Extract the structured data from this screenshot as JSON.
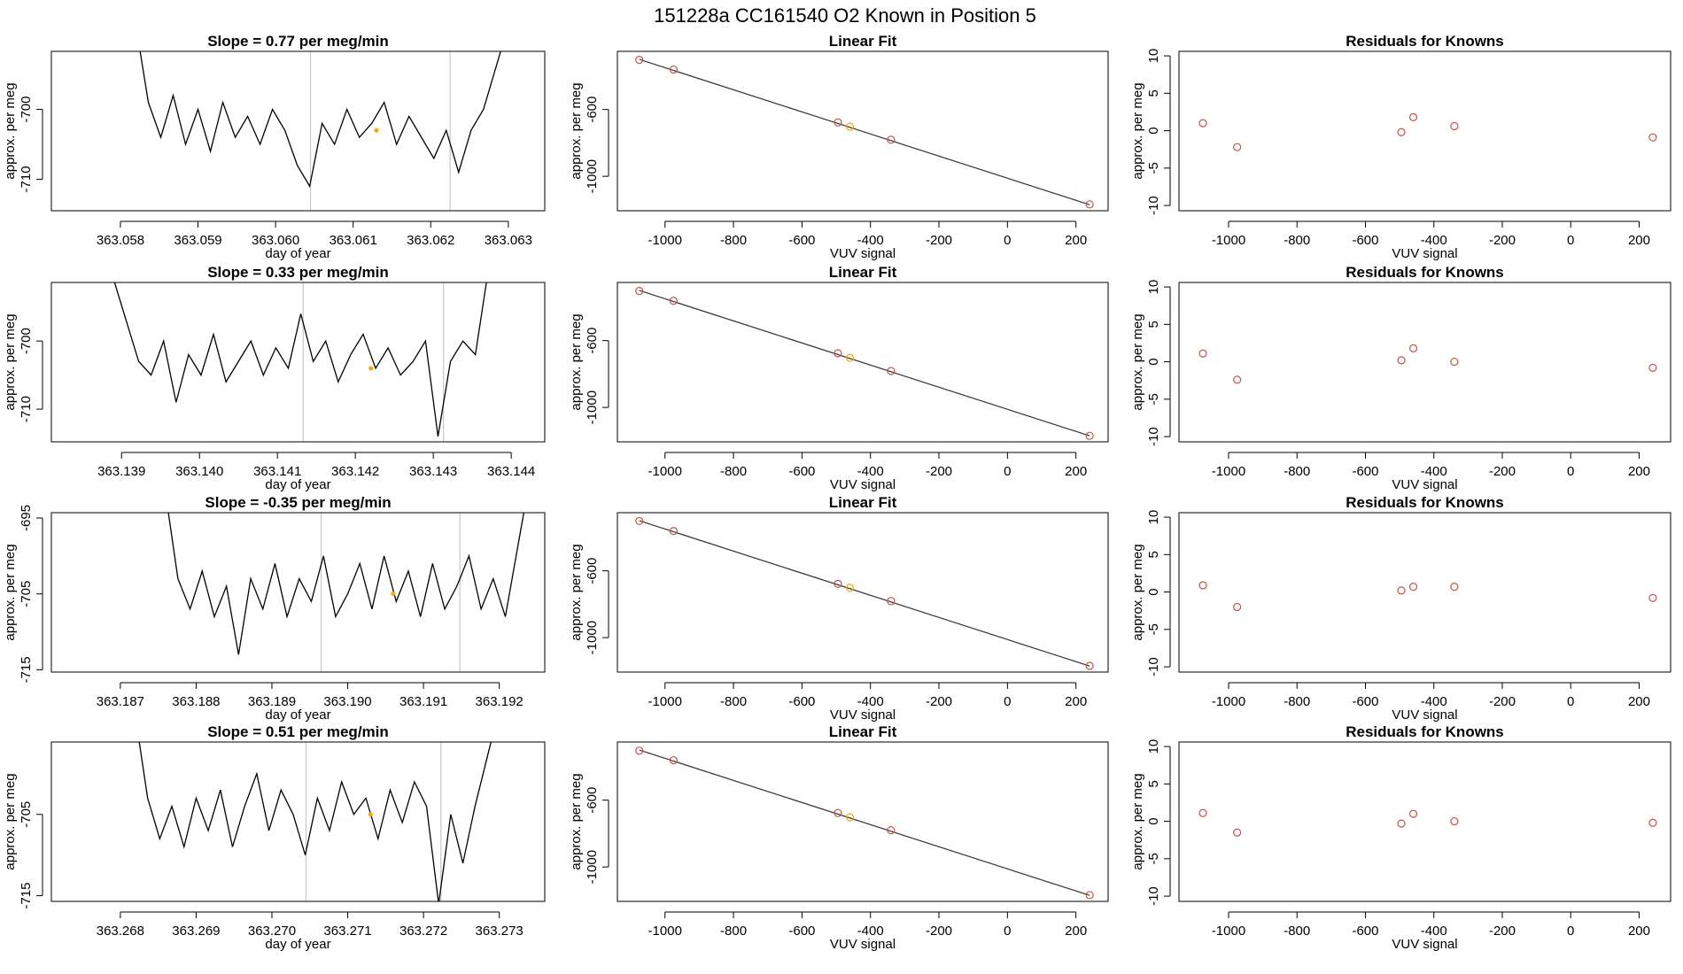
{
  "title": "151228a      CC161540    O2 Known in Position  5",
  "chart_data": [
    {
      "type": "line",
      "title": "Slope =  0.77  per meg/min",
      "xlabel": "day of year",
      "ylabel": "approx. per meg",
      "color": "#000000",
      "x": [
        363.0582,
        363.05836,
        363.05852,
        363.05868,
        363.05884,
        363.059,
        363.05916,
        363.05932,
        363.05948,
        363.05964,
        363.0598,
        363.05996,
        363.06012,
        363.06028,
        363.06044,
        363.0606,
        363.06076,
        363.06092,
        363.06108,
        363.06124,
        363.0614,
        363.06156,
        363.06172,
        363.06188,
        363.06204,
        363.0622,
        363.06236,
        363.06252,
        363.06268,
        363.06284,
        363.063
      ],
      "values": [
        -688,
        -699,
        -704,
        -698,
        -705,
        -700,
        -706,
        -699,
        -704,
        -701,
        -705,
        -700,
        -703,
        -708,
        -711,
        -702,
        -705,
        -700,
        -704,
        -702,
        -699,
        -705,
        -701,
        -704,
        -707,
        -703,
        -709,
        -703,
        -700,
        -694,
        -688
      ],
      "vlines": [
        363.06045,
        363.06225
      ],
      "vline_color": "#c8c8c8",
      "highlight": {
        "x": 363.0613,
        "value": -703,
        "color": "orange"
      },
      "xlim": [
        363.05711,
        363.06347
      ],
      "ylim": [
        -714.5,
        -691.7
      ],
      "xticks": [
        363.058,
        363.059,
        {
          "value": 363.06,
          "label": "363.060"
        },
        363.061,
        363.062,
        363.063
      ],
      "yticks": [
        -710,
        -700
      ]
    },
    {
      "type": "scatter",
      "title": "Linear Fit",
      "xlabel": "VUV signal",
      "ylabel": "approx. per meg",
      "x": [
        -1075,
        -975,
        -495,
        -460,
        -340,
        240
      ],
      "values": [
        -303,
        -361,
        -677,
        -703,
        -781,
        -1168
      ],
      "colors": [
        "#c8504b",
        "#c8504b",
        "#c8504b",
        "orange",
        "#c8504b",
        "#c8504b"
      ],
      "fit_line": {
        "x": [
          -1075,
          240
        ],
        "values": [
          -300,
          -1170
        ],
        "color": "#333333"
      },
      "xlim": [
        -1139,
        294
      ],
      "ylim": [
        -1206,
        -252
      ],
      "xticks": [
        -1000,
        -800,
        -600,
        -400,
        -200,
        0,
        200
      ],
      "yticks": [
        -1000,
        -600
      ]
    },
    {
      "type": "scatter",
      "title": "Residuals for Knowns",
      "xlabel": "VUV signal",
      "ylabel": "approx. per meg",
      "color": "#c8504b",
      "x": [
        -1075,
        -975,
        -495,
        -460,
        -340,
        240
      ],
      "values": [
        1,
        -2.2,
        -0.2,
        1.8,
        0.6,
        -0.9
      ],
      "xlim": [
        -1145,
        292
      ],
      "ylim": [
        -10.7,
        10.6
      ],
      "xticks": [
        -1000,
        -800,
        -600,
        -400,
        -200,
        0,
        200
      ],
      "yticks": [
        -10,
        -5,
        0,
        5,
        10
      ]
    },
    {
      "type": "line",
      "title": "Slope =  0.33  per meg/min",
      "xlabel": "day of year",
      "ylabel": "approx. per meg",
      "color": "#000000",
      "x": [
        363.1389,
        363.13906,
        363.13922,
        363.13938,
        363.13954,
        363.1397,
        363.13986,
        363.14002,
        363.14018,
        363.14034,
        363.1405,
        363.14066,
        363.14082,
        363.14098,
        363.14114,
        363.1413,
        363.14146,
        363.14162,
        363.14178,
        363.14194,
        363.1421,
        363.14226,
        363.14242,
        363.14258,
        363.14274,
        363.1429,
        363.14306,
        363.14322,
        363.14338,
        363.14354,
        363.1437
      ],
      "values": [
        -691,
        -697,
        -703,
        -705,
        -700,
        -709,
        -702,
        -705,
        -699,
        -706,
        -703,
        -700,
        -705,
        -701,
        -704,
        -696,
        -703,
        -700,
        -706,
        -702,
        -699,
        -704,
        -701,
        -705,
        -703,
        -700,
        -714,
        -703,
        -700,
        -702,
        -690
      ],
      "vlines": [
        363.14133,
        363.14313
      ],
      "vline_color": "#c8c8c8",
      "highlight": {
        "x": 363.1422,
        "value": -704,
        "color": "orange"
      },
      "xlim": [
        363.1381,
        363.14443
      ],
      "ylim": [
        -714.8,
        -691.4
      ],
      "xticks": [
        363.139,
        {
          "value": 363.14,
          "label": "363.140"
        },
        363.141,
        363.142,
        363.143,
        363.144
      ],
      "yticks": [
        -710,
        -700
      ]
    },
    {
      "type": "scatter",
      "title": "Linear Fit",
      "xlabel": "VUV signal",
      "ylabel": "approx. per meg",
      "x": [
        -1075,
        -975,
        -495,
        -460,
        -340,
        240
      ],
      "values": [
        -303,
        -362,
        -676,
        -703,
        -782,
        -1170
      ],
      "colors": [
        "#c8504b",
        "#c8504b",
        "#c8504b",
        "orange",
        "#c8504b",
        "#c8504b"
      ],
      "fit_line": {
        "x": [
          -1075,
          240
        ],
        "values": [
          -300,
          -1170
        ],
        "color": "#333333"
      },
      "xlim": [
        -1139,
        294
      ],
      "ylim": [
        -1206,
        -252
      ],
      "xticks": [
        -1000,
        -800,
        -600,
        -400,
        -200,
        0,
        200
      ],
      "yticks": [
        -1000,
        -600
      ]
    },
    {
      "type": "scatter",
      "title": "Residuals for Knowns",
      "xlabel": "VUV signal",
      "ylabel": "approx. per meg",
      "color": "#c8504b",
      "x": [
        -1075,
        -975,
        -495,
        -460,
        -340,
        240
      ],
      "values": [
        1.1,
        -2.4,
        0.2,
        1.8,
        0,
        -0.8
      ],
      "xlim": [
        -1145,
        292
      ],
      "ylim": [
        -10.7,
        10.6
      ],
      "xticks": [
        -1000,
        -800,
        -600,
        -400,
        -200,
        0,
        200
      ],
      "yticks": [
        -10,
        -5,
        0,
        5,
        10
      ]
    },
    {
      "type": "line",
      "title": "Slope =  -0.35  per meg/min",
      "xlabel": "day of year",
      "ylabel": "approx. per meg",
      "color": "#000000",
      "x": [
        363.1876,
        363.18776,
        363.18792,
        363.18808,
        363.18824,
        363.1884,
        363.18856,
        363.18872,
        363.18888,
        363.18904,
        363.1892,
        363.18936,
        363.18952,
        363.18968,
        363.18984,
        363.19,
        363.19016,
        363.19032,
        363.19048,
        363.19064,
        363.1908,
        363.19096,
        363.19112,
        363.19128,
        363.19144,
        363.1916,
        363.19176,
        363.19192,
        363.19208,
        363.19224,
        363.1924
      ],
      "values": [
        -692,
        -703,
        -707,
        -702,
        -708,
        -704,
        -713,
        -703,
        -707,
        -701,
        -708,
        -703,
        -706,
        -700,
        -708,
        -705,
        -701,
        -707,
        -700,
        -706,
        -702,
        -708,
        -701,
        -707,
        -704,
        -700,
        -707,
        -703,
        -708,
        -699,
        -690
      ],
      "vlines": [
        363.18965,
        363.19148
      ],
      "vline_color": "#c8c8c8",
      "highlight": {
        "x": 363.1906,
        "value": -705,
        "color": "orange"
      },
      "xlim": [
        363.18609,
        363.1926
      ],
      "ylim": [
        -715.3,
        -694.3
      ],
      "xticks": [
        363.187,
        363.188,
        363.189,
        {
          "value": 363.19,
          "label": "363.190"
        },
        363.191,
        363.192
      ],
      "yticks": [
        -715,
        -705,
        -695
      ]
    },
    {
      "type": "scatter",
      "title": "Linear Fit",
      "xlabel": "VUV signal",
      "ylabel": "approx. per meg",
      "x": [
        -1075,
        -975,
        -495,
        -460,
        -340,
        240
      ],
      "values": [
        -302,
        -362,
        -678,
        -702,
        -781,
        -1169
      ],
      "colors": [
        "#c8504b",
        "#c8504b",
        "#c8504b",
        "orange",
        "#c8504b",
        "#c8504b"
      ],
      "fit_line": {
        "x": [
          -1075,
          240
        ],
        "values": [
          -300,
          -1170
        ],
        "color": "#333333"
      },
      "xlim": [
        -1139,
        294
      ],
      "ylim": [
        -1206,
        -252
      ],
      "xticks": [
        -1000,
        -800,
        -600,
        -400,
        -200,
        0,
        200
      ],
      "yticks": [
        -1000,
        -600
      ]
    },
    {
      "type": "scatter",
      "title": "Residuals for Knowns",
      "xlabel": "VUV signal",
      "ylabel": "approx. per meg",
      "color": "#c8504b",
      "x": [
        -1075,
        -975,
        -495,
        -460,
        -340,
        240
      ],
      "values": [
        0.9,
        -2,
        0.2,
        0.7,
        0.7,
        -0.8
      ],
      "xlim": [
        -1145,
        292
      ],
      "ylim": [
        -10.7,
        10.6
      ],
      "xticks": [
        -1000,
        -800,
        -600,
        -400,
        -200,
        0,
        200
      ],
      "yticks": [
        -10,
        -5,
        0,
        5,
        10
      ]
    },
    {
      "type": "line",
      "title": "Slope =  0.51  per meg/min",
      "xlabel": "day of year",
      "ylabel": "approx. per meg",
      "color": "#000000",
      "x": [
        363.2682,
        363.26836,
        363.26852,
        363.26868,
        363.26884,
        363.269,
        363.26916,
        363.26932,
        363.26948,
        363.26964,
        363.2698,
        363.26996,
        363.27012,
        363.27028,
        363.27044,
        363.2706,
        363.27076,
        363.27092,
        363.27108,
        363.27124,
        363.2714,
        363.27156,
        363.27172,
        363.27188,
        363.27204,
        363.2722,
        363.27236,
        363.27252,
        363.27268,
        363.27284,
        363.273
      ],
      "values": [
        -693,
        -703,
        -708,
        -704,
        -709,
        -703,
        -707,
        -702,
        -709,
        -704,
        -700,
        -707,
        -702,
        -705,
        -710,
        -703,
        -707,
        -701,
        -705,
        -703,
        -708,
        -702,
        -706,
        -701,
        -704,
        -716,
        -705,
        -711,
        -704,
        -698,
        -692
      ],
      "vlines": [
        363.27045,
        363.27223
      ],
      "vline_color": "#c8c8c8",
      "highlight": {
        "x": 363.2713,
        "value": -705,
        "color": "orange"
      },
      "xlim": [
        363.26709,
        363.2736
      ],
      "ylim": [
        -715.7,
        -696.1
      ],
      "xticks": [
        363.268,
        363.269,
        {
          "value": 363.27,
          "label": "363.270"
        },
        363.271,
        363.272,
        363.273
      ],
      "yticks": [
        -715,
        -705
      ]
    },
    {
      "type": "scatter",
      "title": "Linear Fit",
      "xlabel": "VUV signal",
      "ylabel": "approx. per meg",
      "x": [
        -1075,
        -975,
        -495,
        -460,
        -340,
        240
      ],
      "values": [
        -304,
        -361,
        -677,
        -703,
        -780,
        -1168
      ],
      "colors": [
        "#c8504b",
        "#c8504b",
        "#c8504b",
        "orange",
        "#c8504b",
        "#c8504b"
      ],
      "fit_line": {
        "x": [
          -1075,
          240
        ],
        "values": [
          -300,
          -1170
        ],
        "color": "#333333"
      },
      "xlim": [
        -1139,
        294
      ],
      "ylim": [
        -1206,
        -252
      ],
      "xticks": [
        -1000,
        -800,
        -600,
        -400,
        -200,
        0,
        200
      ],
      "yticks": [
        -1000,
        -600
      ]
    },
    {
      "type": "scatter",
      "title": "Residuals for Knowns",
      "xlabel": "VUV signal",
      "ylabel": "approx. per meg",
      "color": "#c8504b",
      "x": [
        -1075,
        -975,
        -495,
        -460,
        -340,
        240
      ],
      "values": [
        1.1,
        -1.5,
        -0.3,
        1,
        0,
        -0.2
      ],
      "xlim": [
        -1145,
        292
      ],
      "ylim": [
        -10.7,
        10.6
      ],
      "xticks": [
        -1000,
        -800,
        -600,
        -400,
        -200,
        0,
        200
      ],
      "yticks": [
        -10,
        -5,
        0,
        5,
        10
      ]
    }
  ]
}
